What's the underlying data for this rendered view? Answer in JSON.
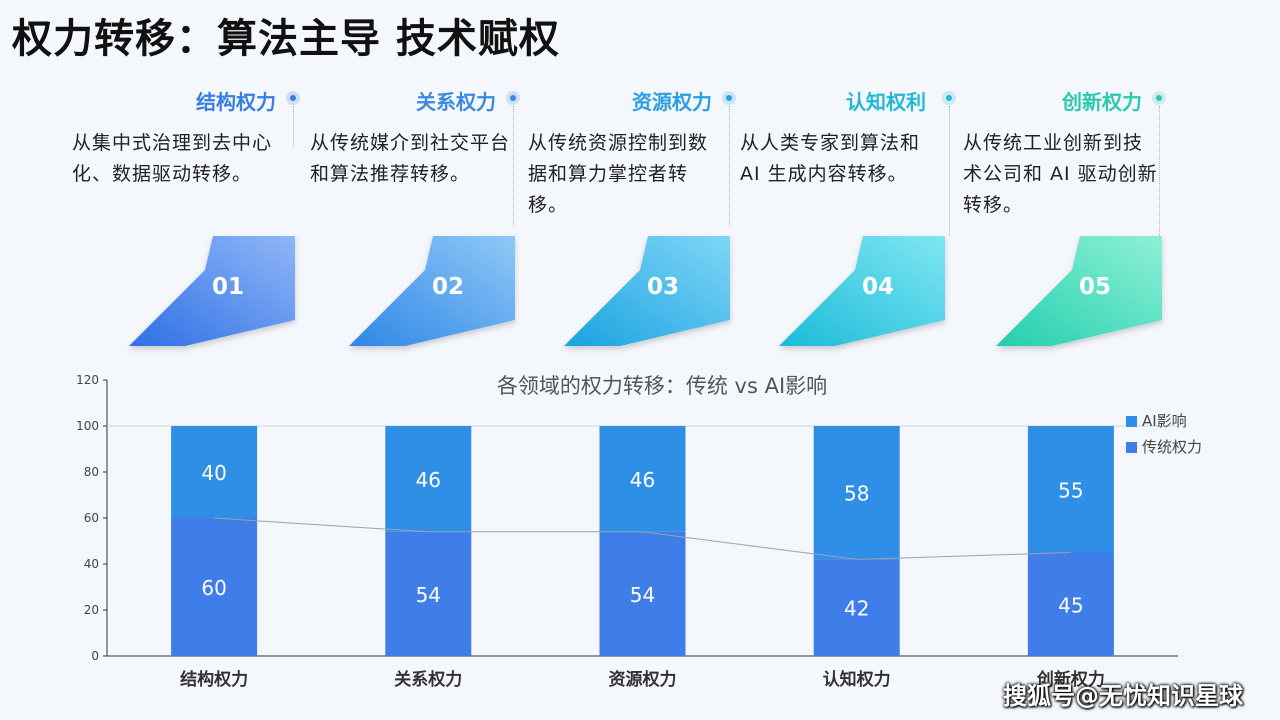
{
  "title": "权力转移：算法主导 技术赋权",
  "steps": [
    {
      "label": "结构权力",
      "desc": "从集中式治理到去中心化、数据驱动转移。",
      "num": "01",
      "color": "#3b7de0",
      "grad": [
        "#2f6fe6",
        "#8fb7f6"
      ]
    },
    {
      "label": "关系权力",
      "desc": "从传统媒介到社交平台和算法推荐转移。",
      "num": "02",
      "color": "#3b8ae0",
      "grad": [
        "#2f86e6",
        "#8fc8f6"
      ]
    },
    {
      "label": "资源权力",
      "desc": "从传统资源控制到数据和算力掌控者转移。",
      "num": "03",
      "color": "#2aa0e0",
      "grad": [
        "#1aa2e0",
        "#7fd6f6"
      ]
    },
    {
      "label": "认知权利",
      "desc": "从人类专家到算法和 AI 生成内容转移。",
      "num": "04",
      "color": "#22b8d8",
      "grad": [
        "#1bbbd8",
        "#7fe6f2"
      ]
    },
    {
      "label": "创新权力",
      "desc": "从传统工业创新到技术公司和 AI 驱动创新转移。",
      "num": "05",
      "color": "#2cc8b0",
      "grad": [
        "#22cfae",
        "#8ef0d6"
      ]
    }
  ],
  "watermark": "搜狐号@无忧知识星球",
  "chart_data": {
    "type": "bar",
    "stacked": true,
    "title": "各领域的权力转移：传统 vs AI影响",
    "categories": [
      "结构权力",
      "关系权力",
      "资源权力",
      "认知权力",
      "创新权力"
    ],
    "series": [
      {
        "name": "传统权力",
        "values": [
          60,
          54,
          54,
          42,
          45
        ],
        "color": "#3f7ee8"
      },
      {
        "name": "AI影响",
        "values": [
          40,
          46,
          46,
          58,
          55
        ],
        "color": "#2f8fe6"
      }
    ],
    "ylim": [
      0,
      120
    ],
    "yticks": [
      0,
      20,
      40,
      60,
      80,
      100,
      120
    ],
    "legend": "top-right",
    "trend_line": true
  }
}
